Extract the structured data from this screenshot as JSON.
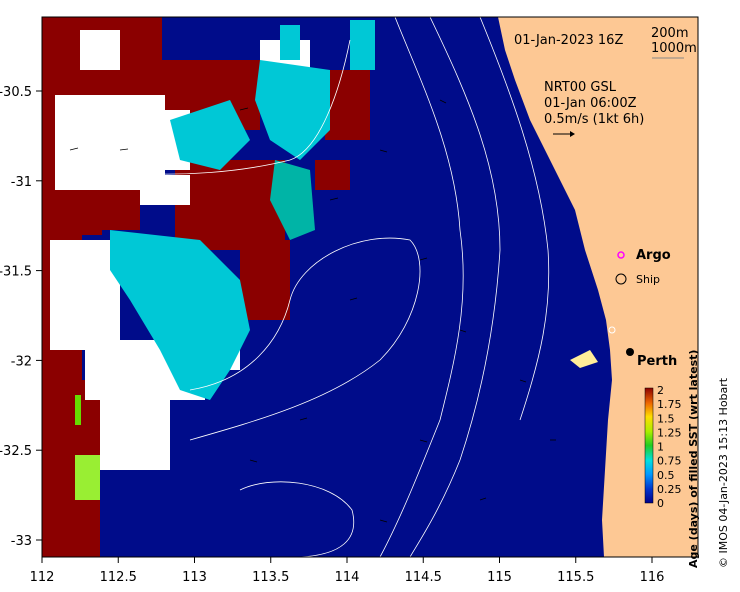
{
  "map": {
    "valid_time": "01-Jan-2023 16Z",
    "contour_labels": [
      "200m",
      "1000m"
    ],
    "current_product": "NRT00 GSL",
    "current_time": "01-Jan 06:00Z",
    "current_scale": "0.5m/s (1kt 6h)",
    "legend": {
      "argo": "Argo",
      "ship": "Ship"
    },
    "place": "Perth",
    "credit": "© IMOS 04-Jan-2023 15:13 Hobart",
    "colors": {
      "land": "#fdc894",
      "ocean": "#000c8a",
      "old": "#8b0000",
      "cyan": "#00c8d6"
    }
  },
  "axes": {
    "x_ticks": [
      "112",
      "112.5",
      "113",
      "113.5",
      "114",
      "114.5",
      "115",
      "115.5",
      "116"
    ],
    "y_ticks": [
      "-30.5",
      "-31",
      "-31.5",
      "-32",
      "-32.5",
      "-33"
    ]
  },
  "colorbar": {
    "label": "Age (days) of filled SST (wrt latest)",
    "ticks": [
      "2",
      "1.75",
      "1.5",
      "1.25",
      "1",
      "0.75",
      "0.5",
      "0.25",
      "0"
    ]
  }
}
